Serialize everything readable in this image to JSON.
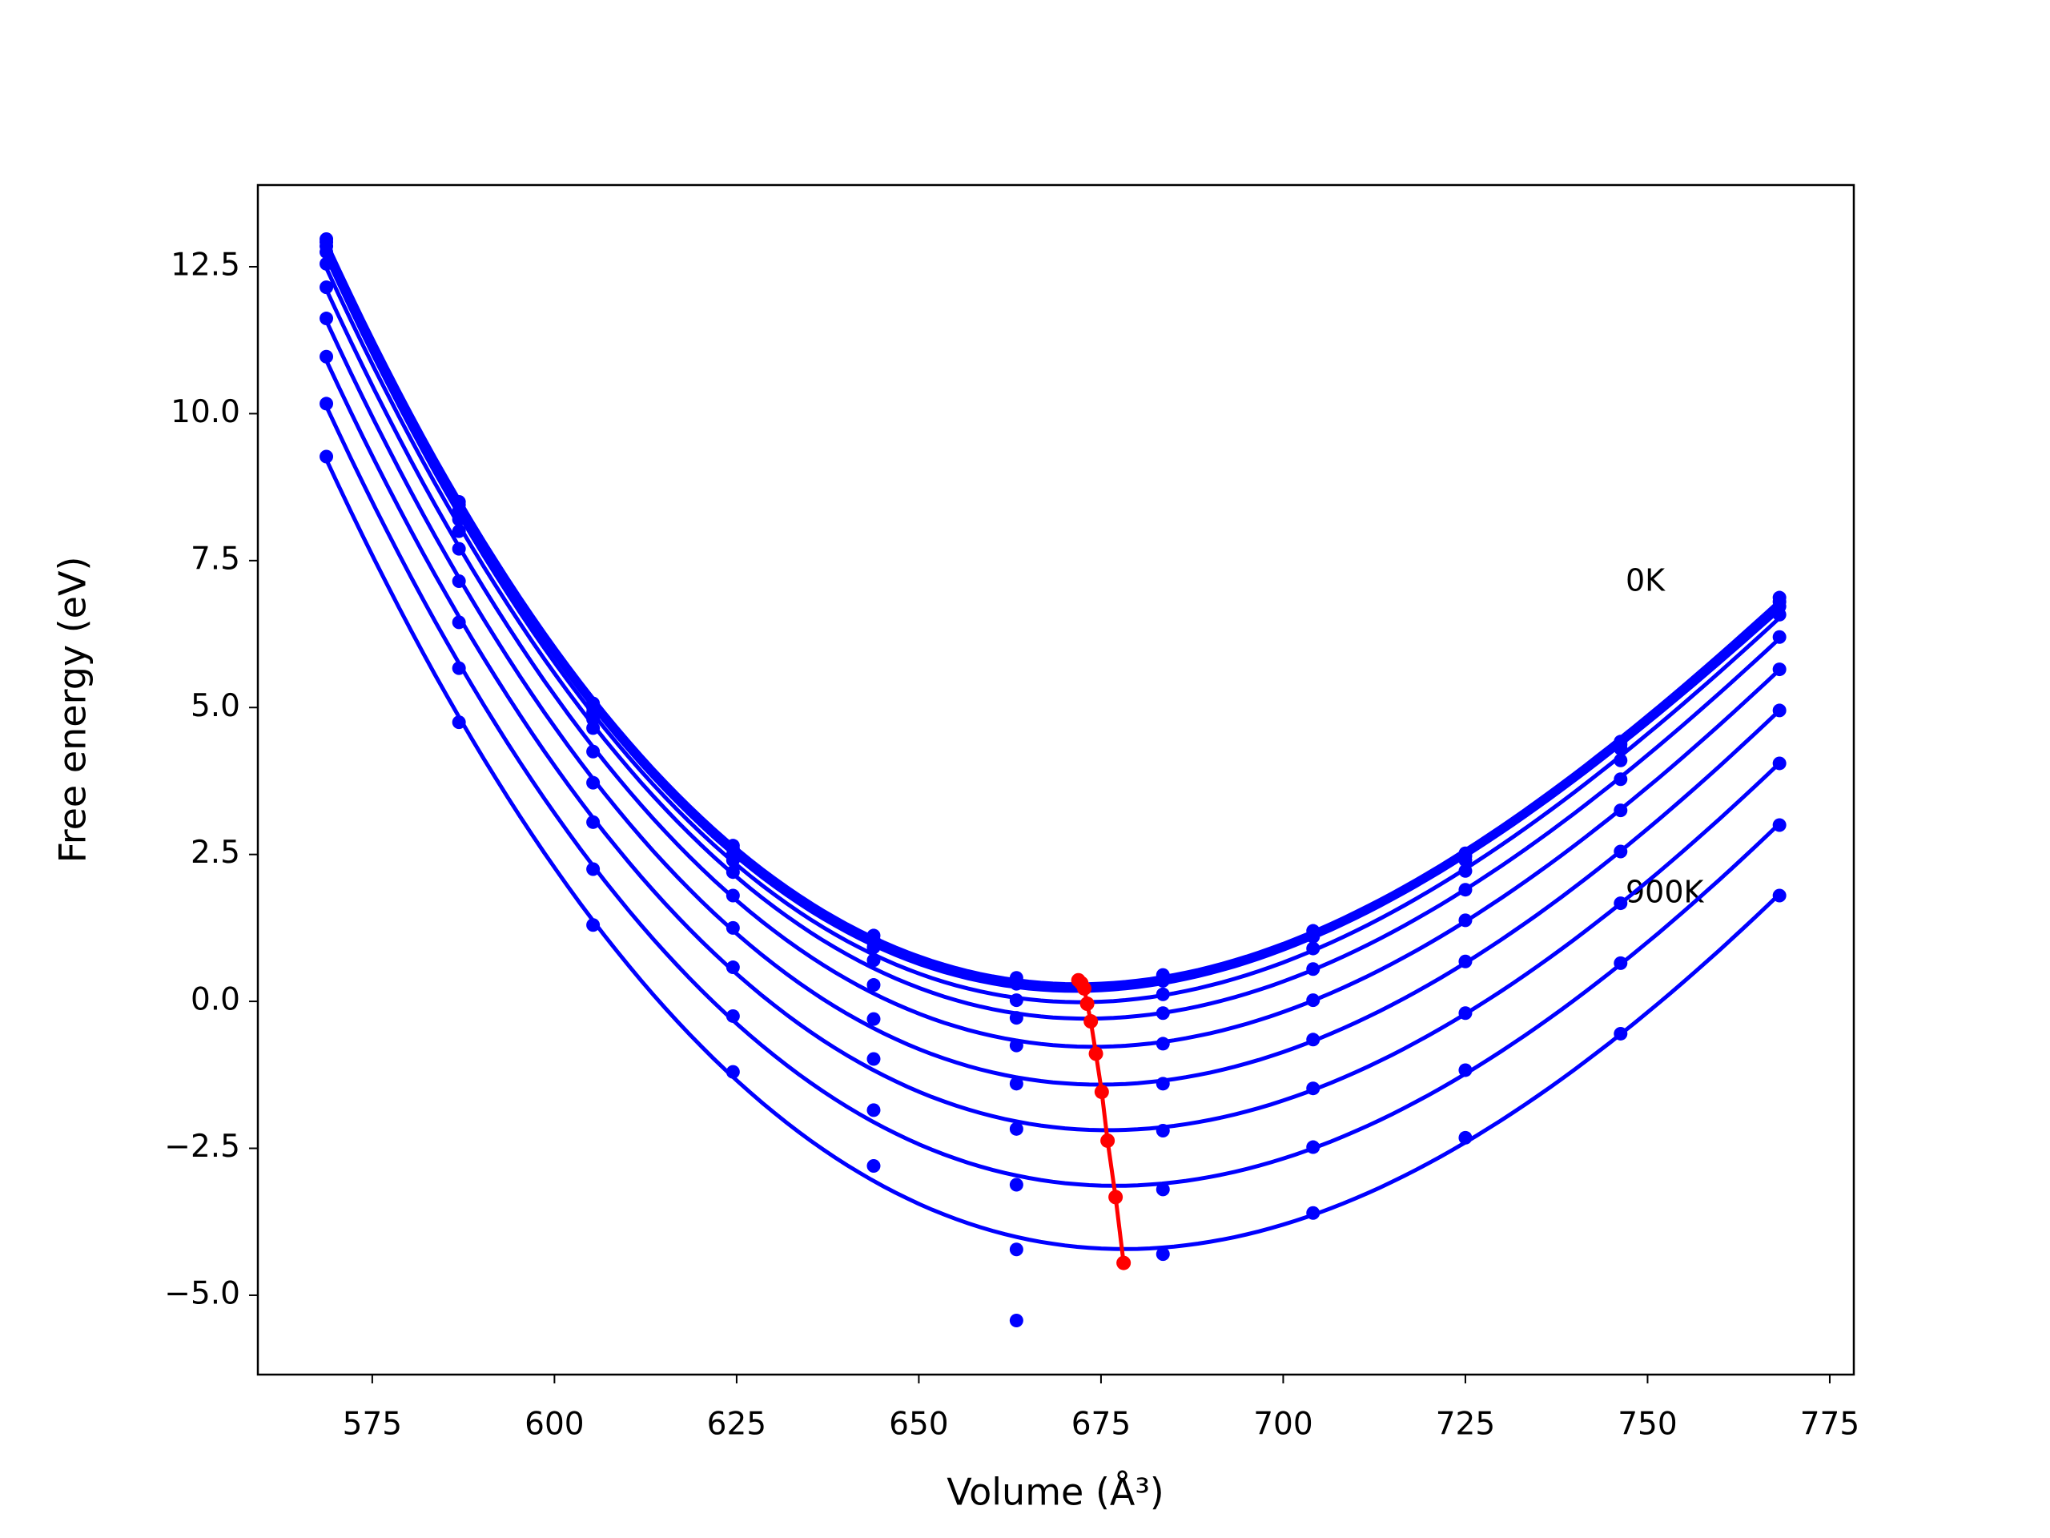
{
  "chart_data": {
    "type": "scatter",
    "xlabel": "Volume (Å³)",
    "ylabel": "Free energy (eV)",
    "annotations": [
      "0K",
      "900K"
    ],
    "x": [
      568.7,
      586.9,
      605.3,
      624.5,
      643.8,
      663.4,
      683.5,
      704.1,
      725.0,
      746.3,
      768.1
    ],
    "series": [
      {
        "color": "#0000ff",
        "values": [
          12.97,
          8.5,
          5.07,
          2.65,
          1.12,
          0.4,
          0.45,
          1.2,
          2.52,
          4.42,
          6.87
        ]
      },
      {
        "color": "#0000ff",
        "values": [
          12.92,
          8.45,
          5.0,
          2.6,
          1.05,
          0.35,
          0.4,
          1.15,
          2.47,
          4.37,
          6.8
        ]
      },
      {
        "color": "#0000ff",
        "values": [
          12.85,
          8.35,
          4.92,
          2.5,
          1.0,
          0.3,
          0.35,
          1.1,
          2.4,
          4.3,
          6.72
        ]
      },
      {
        "color": "#0000ff",
        "values": [
          12.75,
          8.2,
          4.8,
          2.4,
          0.92,
          0.02,
          0.12,
          0.9,
          2.22,
          4.1,
          6.58
        ]
      },
      {
        "color": "#0000ff",
        "values": [
          12.55,
          8.0,
          4.65,
          2.2,
          0.7,
          -0.28,
          -0.2,
          0.55,
          1.9,
          3.78,
          6.2
        ]
      },
      {
        "color": "#0000ff",
        "values": [
          12.15,
          7.7,
          4.25,
          1.8,
          0.28,
          -0.75,
          -0.72,
          0.02,
          1.38,
          3.25,
          5.65
        ]
      },
      {
        "color": "#0000ff",
        "values": [
          11.62,
          7.15,
          3.72,
          1.25,
          -0.3,
          -1.4,
          -1.4,
          -0.65,
          0.68,
          2.55,
          4.95
        ]
      },
      {
        "color": "#0000ff",
        "values": [
          10.97,
          6.45,
          3.05,
          0.58,
          -0.98,
          -2.17,
          -2.2,
          -1.48,
          -0.2,
          1.67,
          4.05
        ]
      },
      {
        "color": "#0000ff",
        "values": [
          10.17,
          5.67,
          2.25,
          -0.25,
          -1.85,
          -3.12,
          -3.2,
          -2.48,
          -1.17,
          0.65,
          3.0
        ]
      },
      {
        "color": "#0000ff",
        "values": [
          9.27,
          4.75,
          1.3,
          -1.2,
          -2.8,
          -4.22,
          -4.3,
          -3.6,
          -2.32,
          -0.55,
          1.8
        ]
      }
    ],
    "extra_points": {
      "color": "#0000ff",
      "x": [
        663.4
      ],
      "values": [
        -5.43
      ]
    },
    "minima": {
      "color": "#ff0000",
      "x": [
        671.9,
        672.3,
        672.7,
        673.1,
        673.6,
        674.3,
        675.1,
        675.9,
        677.0,
        678.1
      ],
      "values": [
        0.36,
        0.31,
        0.22,
        -0.04,
        -0.34,
        -0.89,
        -1.54,
        -2.37,
        -3.33,
        -4.45
      ]
    },
    "xlim": [
      559.3,
      778.3
    ],
    "ylim": [
      -6.35,
      13.89
    ],
    "xticks": [
      575,
      600,
      625,
      650,
      675,
      700,
      725,
      750,
      775
    ],
    "yticks": [
      {
        "value": -5,
        "label": "−5.0"
      },
      {
        "value": -2.5,
        "label": "−2.5"
      },
      {
        "value": 0,
        "label": "0.0"
      },
      2.5,
      {
        "value": 5,
        "label": "5.0"
      },
      7.5,
      {
        "value": 10,
        "label": "10.0"
      },
      12.5
    ]
  }
}
